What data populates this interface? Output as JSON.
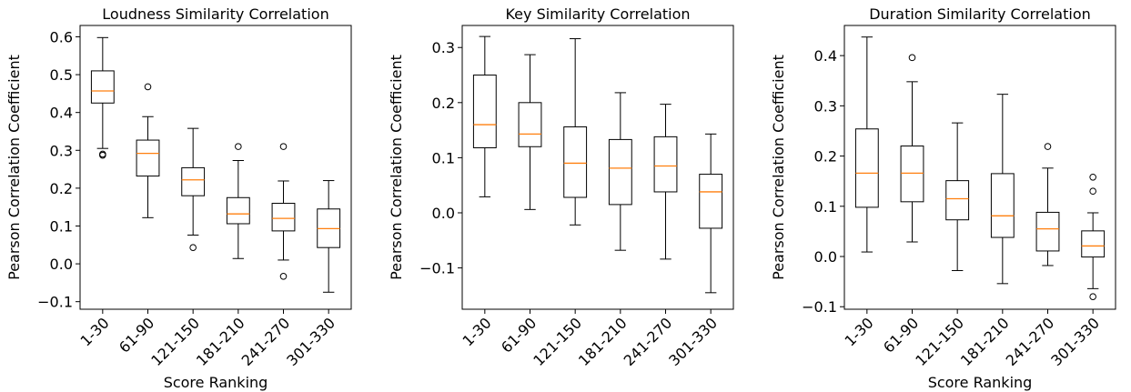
{
  "chart_data": [
    {
      "type": "box",
      "title": "Loudness Similarity Correlation",
      "xlabel": "Score Ranking",
      "ylabel": "Pearson Correlation Coefficient",
      "ylim": [
        -0.12,
        0.63
      ],
      "yticks": [
        "−0.1",
        "0.0",
        "0.1",
        "0.2",
        "0.3",
        "0.4",
        "0.5",
        "0.6"
      ],
      "yticks_values": [
        -0.1,
        0.0,
        0.1,
        0.2,
        0.3,
        0.4,
        0.5,
        0.6
      ],
      "categories": [
        "1-30",
        "61-90",
        "121-150",
        "181-210",
        "241-270",
        "301-330"
      ],
      "boxes": [
        {
          "whislo": 0.305,
          "q1": 0.425,
          "med": 0.457,
          "q3": 0.51,
          "whishi": 0.598,
          "fliers": [
            0.29,
            0.287
          ]
        },
        {
          "whislo": 0.122,
          "q1": 0.232,
          "med": 0.292,
          "q3": 0.327,
          "whishi": 0.389,
          "fliers": [
            0.468
          ]
        },
        {
          "whislo": 0.076,
          "q1": 0.18,
          "med": 0.222,
          "q3": 0.254,
          "whishi": 0.358,
          "fliers": [
            0.043
          ]
        },
        {
          "whislo": 0.014,
          "q1": 0.106,
          "med": 0.132,
          "q3": 0.175,
          "whishi": 0.273,
          "fliers": [
            0.31
          ]
        },
        {
          "whislo": 0.01,
          "q1": 0.087,
          "med": 0.12,
          "q3": 0.16,
          "whishi": 0.219,
          "fliers": [
            0.31,
            -0.033
          ]
        },
        {
          "whislo": -0.075,
          "q1": 0.043,
          "med": 0.093,
          "q3": 0.145,
          "whishi": 0.22,
          "fliers": []
        }
      ]
    },
    {
      "type": "box",
      "title": "Key Similarity Correlation",
      "xlabel": "",
      "ylabel": "Pearson Correlation Coefficient",
      "ylim": [
        -0.175,
        0.34
      ],
      "yticks": [
        "−0.1",
        "0.0",
        "0.1",
        "0.2",
        "0.3"
      ],
      "yticks_values": [
        -0.1,
        0.0,
        0.1,
        0.2,
        0.3
      ],
      "categories": [
        "1-30",
        "61-90",
        "121-150",
        "181-210",
        "241-270",
        "301-330"
      ],
      "boxes": [
        {
          "whislo": 0.029,
          "q1": 0.118,
          "med": 0.16,
          "q3": 0.25,
          "whishi": 0.32,
          "fliers": []
        },
        {
          "whislo": 0.006,
          "q1": 0.12,
          "med": 0.143,
          "q3": 0.2,
          "whishi": 0.287,
          "fliers": []
        },
        {
          "whislo": -0.022,
          "q1": 0.028,
          "med": 0.09,
          "q3": 0.156,
          "whishi": 0.316,
          "fliers": []
        },
        {
          "whislo": -0.068,
          "q1": 0.015,
          "med": 0.081,
          "q3": 0.133,
          "whishi": 0.218,
          "fliers": []
        },
        {
          "whislo": -0.084,
          "q1": 0.038,
          "med": 0.085,
          "q3": 0.138,
          "whishi": 0.197,
          "fliers": []
        },
        {
          "whislo": -0.145,
          "q1": -0.028,
          "med": 0.038,
          "q3": 0.07,
          "whishi": 0.143,
          "fliers": []
        }
      ]
    },
    {
      "type": "box",
      "title": "Duration Similarity Correlation",
      "xlabel": "Score Ranking",
      "ylabel": "Pearson Correlation Coefficient",
      "ylim": [
        -0.105,
        0.46
      ],
      "yticks": [
        "−0.1",
        "0.0",
        "0.1",
        "0.2",
        "0.3",
        "0.4"
      ],
      "yticks_values": [
        -0.1,
        0.0,
        0.1,
        0.2,
        0.3,
        0.4
      ],
      "categories": [
        "1-30",
        "61-90",
        "121-150",
        "181-210",
        "241-270",
        "301-330"
      ],
      "boxes": [
        {
          "whislo": 0.009,
          "q1": 0.098,
          "med": 0.166,
          "q3": 0.254,
          "whishi": 0.437,
          "fliers": []
        },
        {
          "whislo": 0.029,
          "q1": 0.109,
          "med": 0.166,
          "q3": 0.22,
          "whishi": 0.348,
          "fliers": [
            0.396
          ]
        },
        {
          "whislo": -0.028,
          "q1": 0.073,
          "med": 0.115,
          "q3": 0.151,
          "whishi": 0.266,
          "fliers": []
        },
        {
          "whislo": -0.054,
          "q1": 0.038,
          "med": 0.081,
          "q3": 0.165,
          "whishi": 0.323,
          "fliers": []
        },
        {
          "whislo": -0.018,
          "q1": 0.011,
          "med": 0.055,
          "q3": 0.088,
          "whishi": 0.176,
          "fliers": [
            0.219
          ]
        },
        {
          "whislo": -0.064,
          "q1": -0.001,
          "med": 0.021,
          "q3": 0.051,
          "whishi": 0.087,
          "fliers": [
            0.158,
            0.13,
            -0.08
          ]
        }
      ]
    }
  ],
  "colors": {
    "box": "#000000",
    "median": "#ff7f0e"
  }
}
